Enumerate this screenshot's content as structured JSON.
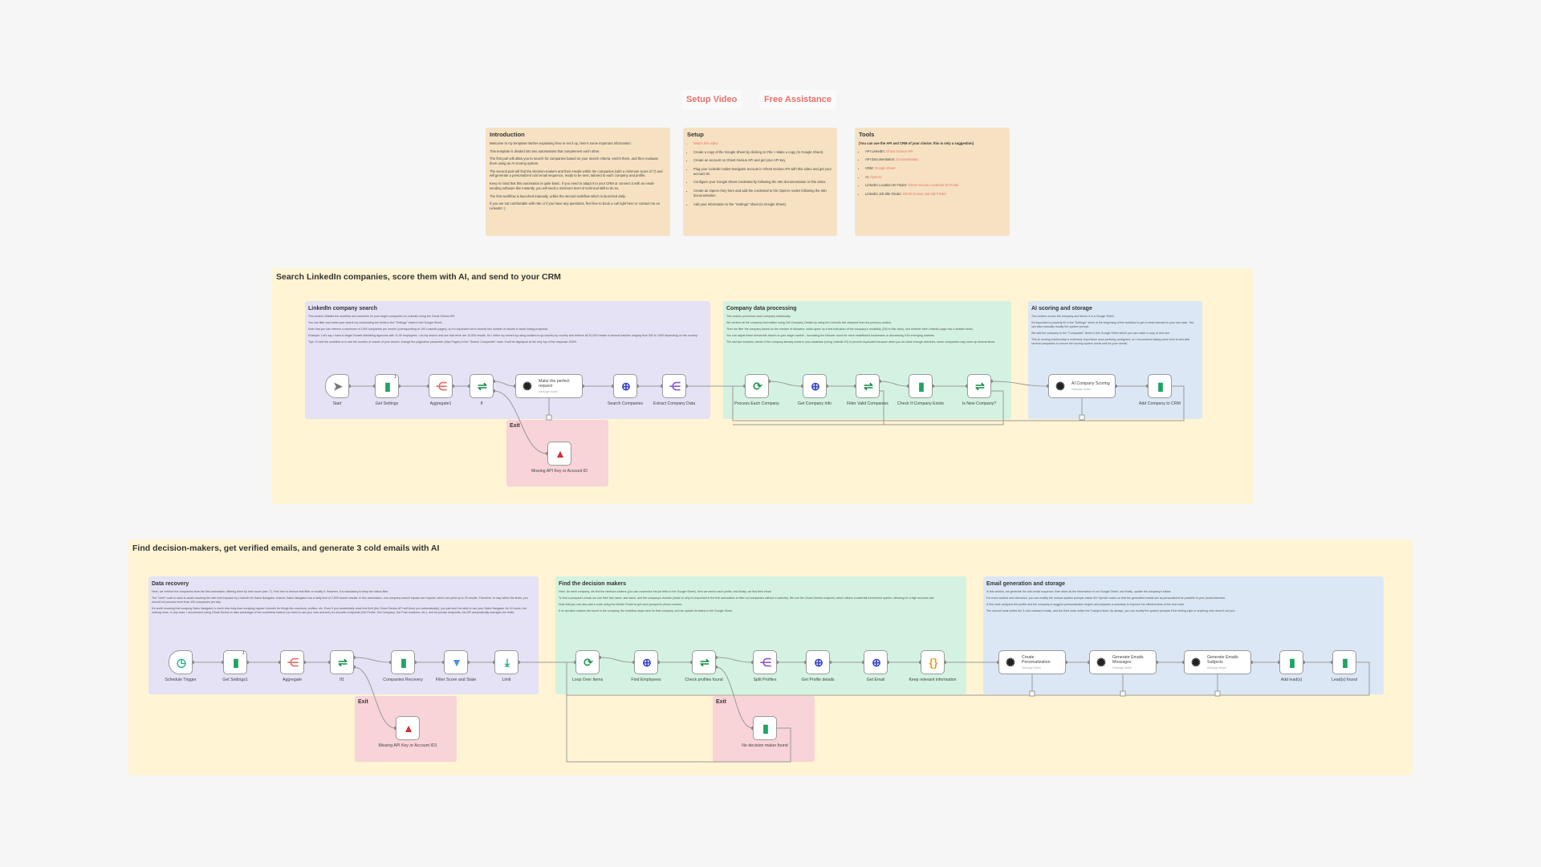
{
  "header_links": {
    "setup_video": "Setup Video",
    "free_assistance": "Free Assistance"
  },
  "sticky_notes": {
    "introduction": {
      "title": "Introduction",
      "paragraphs": [
        "Welcome to my template! Before explaining how to set it up, here's some important information:",
        "This template is divided into two automations that complement each other.",
        "The first part will allow you to search for companies based on your search criteria, enrich them, and then evaluate them using an AI scoring system.",
        "The second part will find the decision-makers and their emails within the companies (with a minimum score of 7) and will generate a personalized cold email sequence, ready to be sent, tailored to each company and profile.",
        "Keep in mind that this automation is quite basic. If you need to adapt it to your CRM or connect it with an email-sending software like Instantly, you will need a minimum level of technical skill to do so.",
        "The first workflow is launched manually, unlike the second workflow which is launched daily.",
        "If you are not comfortable with n8n or if you have any questions, feel free to book a call right here or contact me on LinkedIn :)"
      ]
    },
    "setup": {
      "title": "Setup",
      "items": [
        "Watch this video",
        "Create a copy of the Google Sheet by clicking on File > Make a copy (in Google Sheet).",
        "Create an account on Ghost Genius API and get your API key.",
        "Plug your LinkedIn Sales Navigator account in Ghost Genius API with this video and get your account ID.",
        "Configure your Google Sheet credential by following the n8n documentation or this video.",
        "Create an OpenAI key here and add the credential to the OpenAI nodes following the n8n documentation.",
        "Add your information to the \"Settings\" sheet (in Google Sheet)."
      ]
    },
    "tools": {
      "title": "Tools",
      "note": "(You can use the API and CRM of your choice; this is only a suggestion)",
      "items": [
        {
          "label": "API LinkedIn:",
          "link": "Ghost Genius API"
        },
        {
          "label": "API Documentation:",
          "link": "Documentation"
        },
        {
          "label": "CRM:",
          "link": "Google Sheet"
        },
        {
          "label": "AI:",
          "link": "OpenAI"
        },
        {
          "label": "LinkedIn Location ID Finder:",
          "link": "Ghost Genius Locations ID Finder"
        },
        {
          "label": "LinkedIn Job title Finder:",
          "link": "Ghost Genius Job title Finder"
        }
      ]
    }
  },
  "workflow1": {
    "title": "Search LinkedIn companies, score them with AI, and send to your CRM",
    "sections": {
      "search": {
        "title": "LinkedIn company search",
        "paragraphs": [
          "This section initiates the workflow and searches for your target companies on LinkedIn using the Ghost Genius API.",
          "You can filter and refine your search by customizing the fields in the \"Settings\" sheet in the Google Sheet.",
          "Note that you can retrieve a maximum of 1000 companies per search (corresponding to 100 LinkedIn pages), so it's important not to exceed this number of results to avoid losing prospects.",
          "Example: Let's say I want to target Growth Marketing Agencies with 11-50 employees. I do my search and see that there are 10,000 results. So I refine my search by using location to go country by country and retrieve all 10,000 results in several batches ranging from 500 to 1000 depending on the country.",
          "Tips: To test the workflow or to see the number of results of your search, change the pagination parameter (Max Pages) in the \"Search Companies\" node. It will be displayed at the very top of the response JSON."
        ]
      },
      "processing": {
        "title": "Company data processing",
        "paragraphs": [
          "This section processes each company individually.",
          "We retrieve all the company information using Get Company Details by using the LinkedIn link obtained from the previous section.",
          "Then we filter the company based on the number of followers, which gives us a first indication of the company's credibility (200 in this case), and whether their LinkedIn page has a website listed.",
          "You can adjust these thresholds based on your target market - increasing the follower count for more established businesses or decreasing it for emerging markets.",
          "The last two modules checks if the company already exists in your database (using LinkedIn ID) to prevent duplicates because when you do close enough searches, some companies may come up several times."
        ]
      },
      "scoring": {
        "title": "AI scoring and storage",
        "paragraphs": [
          "This section scores the company and stores it in a Google Sheet.",
          "It's important to properly fill in the \"Settings\" sheet at the beginning of the workflow to get a result relevant to your use case. You can also manually modify the system prompt.",
          "We add the company to the \"Companies\" sheet in this Google Sheet which you can make a copy of and use.",
          "This AI scoring functionality is extremely impressive once perfectly configured, so I recommend taking some time to test with several companies to ensure the scoring system works well for your needs!"
        ]
      },
      "exit": {
        "title": "Exit"
      }
    },
    "nodes": [
      {
        "id": "start",
        "label": "Start",
        "icon": "cursor-icon"
      },
      {
        "id": "get_settings",
        "label": "Get Settings",
        "icon": "google-sheets-icon",
        "badge": "1"
      },
      {
        "id": "aggregate1",
        "label": "Aggregate1",
        "icon": "aggregate-icon"
      },
      {
        "id": "if",
        "label": "If",
        "icon": "if-icon"
      },
      {
        "id": "make_request",
        "label": "Make the perfect request",
        "sub": "Message Model",
        "icon": "openai-icon"
      },
      {
        "id": "search_companies",
        "label": "Search Companies",
        "icon": "http-globe-icon"
      },
      {
        "id": "extract_data",
        "label": "Extract Company Data",
        "icon": "split-icon"
      },
      {
        "id": "process_each",
        "label": "Process Each Company",
        "icon": "loop-icon"
      },
      {
        "id": "get_company_info",
        "label": "Get Company Info",
        "icon": "http-globe-icon"
      },
      {
        "id": "filter_valid",
        "label": "Filter Valid Companies",
        "icon": "if-icon"
      },
      {
        "id": "check_exists",
        "label": "Check If Company Exists",
        "icon": "google-sheets-icon"
      },
      {
        "id": "is_new",
        "label": "Is New Company?",
        "icon": "if-icon"
      },
      {
        "id": "ai_scoring",
        "label": "AI Company Scoring",
        "sub": "Message Model",
        "icon": "openai-icon"
      },
      {
        "id": "add_company",
        "label": "Add Company to CRM",
        "icon": "google-sheets-icon"
      },
      {
        "id": "missing1",
        "label": "Missing API Key or Account ID",
        "icon": "warning-icon"
      }
    ]
  },
  "workflow2": {
    "title": "Find decision-makers, get verified emails, and generate 3 cold emails with AI",
    "sections": {
      "recovery": {
        "title": "Data recovery",
        "paragraphs": [
          "Here, we retrieve the companies from the first automation, filtering them by their score (min. 7). Feel free to remove this filter or modify it. However, it is mandatory to keep the status filter.",
          "The \"Limit\" node is used to avoid reaching the rate limit imposed by LinkedIn for Sales Navigator. Indeed, Sales Navigator has a daily limit of 2,500 search results. In this automation, one company search equals one request, which can yield up to 25 results. Therefore, to stay within the limits, you should not process more than 100 companies per day.",
          "It's worth knowing that scraping Sales Navigator is much less risky than scraping regular LinkedIn for things like reactions, profiles, etc. Even if you accidentally reach the limit (the Ghost Genius API will block you automatically), you just won't be able to use your Sales Navigator for 24 hours, but nothing more. In any case, I recommend using Ghost Genius to take advantage of the cookieless feature (no need to use your own account) for all public endpoints (Get Profile, Get Company, Get Post reactions, etc.), and for private endpoints, the API automatically manages the limits."
        ]
      },
      "decision": {
        "title": "Find the decision makers",
        "paragraphs": [
          "Here, for each company, we find the decision-makers (you can customize the job titles in the Google Sheet), then we enrich each profile, and finally, we find their email.",
          "To find a prospect's email, we use their first name, last name, and the company's domain (which is why it's important in the first automation to filter out companies without a website). We use the Ghost Genius endpoint, which utilizes a waterfall enrichment system, allowing for a high success rate.",
          "Note that you can also add a route using the Mobile Finder to get each prospect's phone number.",
          "If no decision makers are found in the company, the workflow stops here for that company, and we update its status in the Google Sheet."
        ]
      },
      "email": {
        "title": "Email generation and storage",
        "paragraphs": [
          "In this section, we generate the cold email sequence, then store all the information in our Google Sheet, and finally, update the company's status.",
          "For more context and relevance, you can modify the various system prompts inside the OpenAI nodes so that the generated emails are as personalized as possible to your product/service.",
          "A first node analyzes the profile and the company to suggest personalization angles and prepares a summary to improve the effectiveness of the next node.",
          "The second node writes the 3 cold outreach emails, and the third node writes the 3 subject lines. As always, you can modify the system prompts if the writing style or anything else doesn't suit you."
        ]
      },
      "exit_a": {
        "title": "Exit"
      },
      "exit_b": {
        "title": "Exit"
      }
    },
    "nodes": [
      {
        "id": "schedule",
        "label": "Schedule Trigger",
        "icon": "clock-icon"
      },
      {
        "id": "get_settings1",
        "label": "Get Settings1",
        "icon": "google-sheets-icon",
        "badge": "1"
      },
      {
        "id": "aggregate2",
        "label": "Aggregate",
        "icon": "aggregate-icon"
      },
      {
        "id": "if1",
        "label": "If1",
        "icon": "if-icon"
      },
      {
        "id": "companies_recovery",
        "label": "Companies Recovery",
        "icon": "google-sheets-icon"
      },
      {
        "id": "filter_score",
        "label": "Filter Score and State",
        "icon": "filter-icon"
      },
      {
        "id": "limit",
        "label": "Limit",
        "icon": "limit-icon"
      },
      {
        "id": "loop",
        "label": "Loop Over Items",
        "icon": "loop-icon"
      },
      {
        "id": "find_employees",
        "label": "Find Employees",
        "icon": "http-globe-icon"
      },
      {
        "id": "check_profiles",
        "label": "Check profiles found",
        "icon": "if-icon"
      },
      {
        "id": "split_profiles",
        "label": "Split Profiles",
        "icon": "split-icon"
      },
      {
        "id": "get_profile",
        "label": "Get Profile details",
        "icon": "http-globe-icon"
      },
      {
        "id": "get_email",
        "label": "Get Email",
        "icon": "http-globe-icon"
      },
      {
        "id": "keep_info",
        "label": "Keep relevant information",
        "icon": "code-braces-icon"
      },
      {
        "id": "create_pers",
        "label": "Create Personalization",
        "sub": "Message Model",
        "icon": "openai-icon"
      },
      {
        "id": "gen_messages",
        "label": "Generate Emails Messages",
        "sub": "Message Model",
        "icon": "openai-icon"
      },
      {
        "id": "gen_subjects",
        "label": "Generate Emails Subjects",
        "sub": "Message Model",
        "icon": "openai-icon"
      },
      {
        "id": "add_lead",
        "label": "Add lead(s)",
        "icon": "google-sheets-icon"
      },
      {
        "id": "leads_found",
        "label": "Lead(s) found",
        "icon": "google-sheets-icon"
      },
      {
        "id": "missing2",
        "label": "Missing API Key or Account ID1",
        "icon": "warning-icon"
      },
      {
        "id": "no_dm",
        "label": "No decision maker found",
        "icon": "google-sheets-icon"
      }
    ]
  },
  "colors": {
    "link": "#e8706a",
    "group": "#fff4d3",
    "sticky": "#f6e2c2",
    "purple_section": "#e4e2f4",
    "green_section": "#d4f2e1",
    "blue_section": "#dce7f5",
    "exit_section": "#f8d3d7"
  }
}
